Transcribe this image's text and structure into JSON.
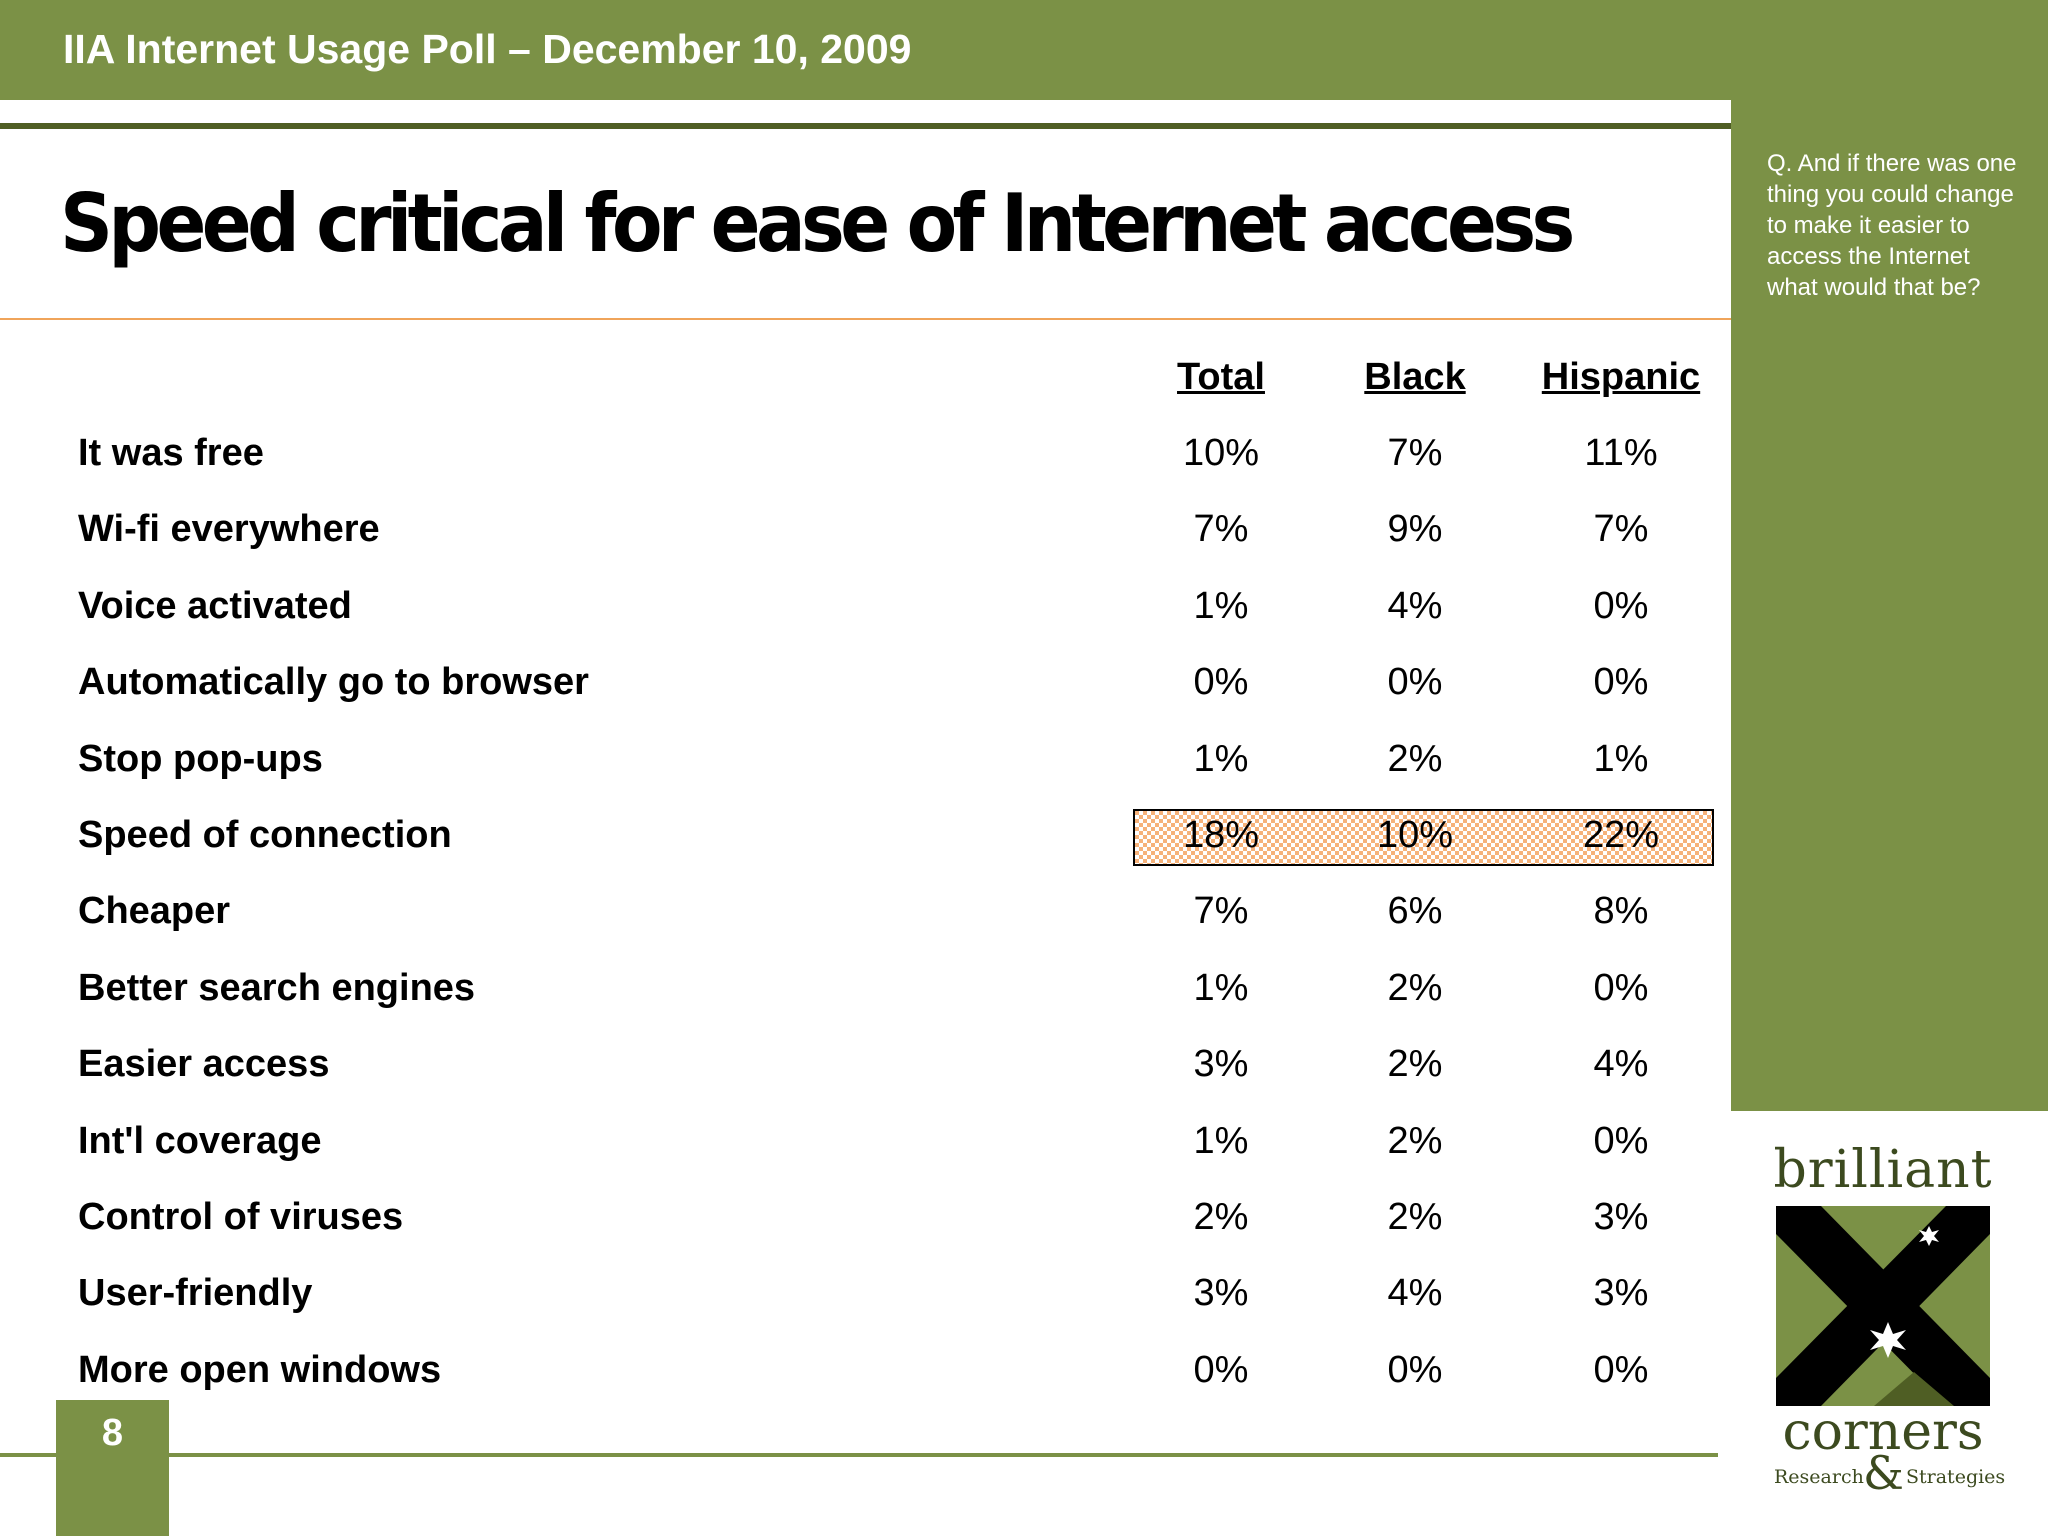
{
  "header": {
    "title": "IIA Internet Usage Poll – December 10, 2009"
  },
  "slide": {
    "title": "Speed critical for ease of Internet access",
    "page_number": "8"
  },
  "sidebar": {
    "question": "Q. And if there was one thing you could change to make it easier to access the Internet what would that be?"
  },
  "table": {
    "columns": [
      "Total",
      "Black",
      "Hispanic"
    ],
    "highlighted_row": "Speed of connection",
    "rows": [
      {
        "label": "It was free",
        "values": [
          "10%",
          "7%",
          "11%"
        ]
      },
      {
        "label": "Wi-fi everywhere",
        "values": [
          "7%",
          "9%",
          "7%"
        ]
      },
      {
        "label": "Voice activated",
        "values": [
          "1%",
          "4%",
          "0%"
        ]
      },
      {
        "label": "Automatically go to browser",
        "values": [
          "0%",
          "0%",
          "0%"
        ]
      },
      {
        "label": "Stop pop-ups",
        "values": [
          "1%",
          "2%",
          "1%"
        ]
      },
      {
        "label": "Speed of connection",
        "values": [
          "18%",
          "10%",
          "22%"
        ]
      },
      {
        "label": "Cheaper",
        "values": [
          "7%",
          "6%",
          "8%"
        ]
      },
      {
        "label": "Better search engines",
        "values": [
          "1%",
          "2%",
          "0%"
        ]
      },
      {
        "label": "Easier access",
        "values": [
          "3%",
          "2%",
          "4%"
        ]
      },
      {
        "label": "Int'l coverage",
        "values": [
          "1%",
          "2%",
          "0%"
        ]
      },
      {
        "label": "Control of viruses",
        "values": [
          "2%",
          "2%",
          "3%"
        ]
      },
      {
        "label": "User-friendly",
        "values": [
          "3%",
          "4%",
          "3%"
        ]
      },
      {
        "label": "More open windows",
        "values": [
          "0%",
          "0%",
          "0%"
        ]
      }
    ]
  },
  "logo": {
    "line1": "brilliant",
    "line2": "corners",
    "amp": "&",
    "sub_left": "Research",
    "sub_right": "Strategies"
  },
  "colors": {
    "brand_green": "#7b9146",
    "dark_green": "#4f5e24",
    "accent_orange": "#f0a45a"
  }
}
